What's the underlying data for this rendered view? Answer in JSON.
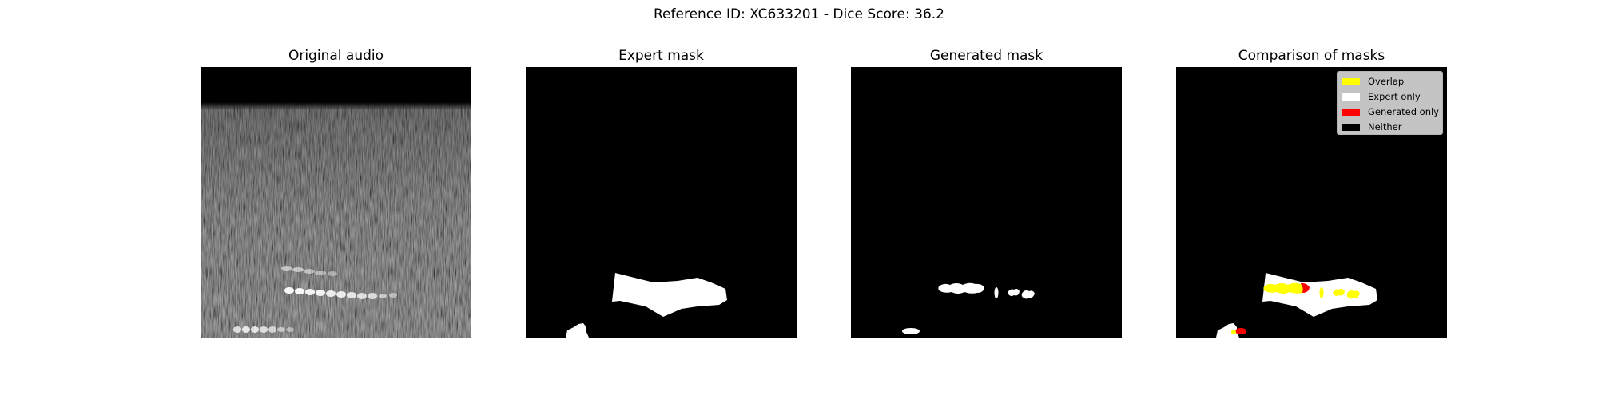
{
  "figure": {
    "title": "Reference ID: XC633201 - Dice Score: 36.2"
  },
  "panels": [
    {
      "title": "Original audio"
    },
    {
      "title": "Expert mask"
    },
    {
      "title": "Generated mask"
    },
    {
      "title": "Comparison of masks"
    }
  ],
  "legend": {
    "items": [
      {
        "label": "Overlap",
        "color": "#ffff00"
      },
      {
        "label": "Expert only",
        "color": "#ffffff"
      },
      {
        "label": "Generated only",
        "color": "#ff0000"
      },
      {
        "label": "Neither",
        "color": "#000000"
      }
    ]
  }
}
